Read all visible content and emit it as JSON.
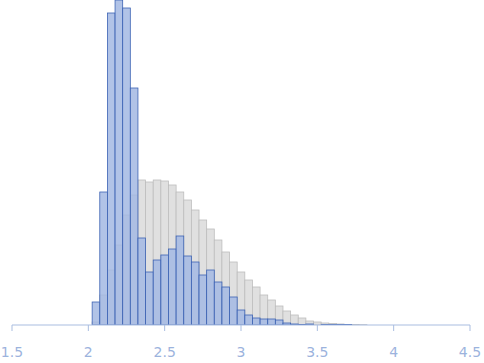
{
  "chart_data": {
    "type": "histogram",
    "bins": [
      2.025,
      2.075,
      2.125,
      2.175,
      2.225,
      2.275,
      2.325,
      2.375,
      2.425,
      2.475,
      2.525,
      2.575,
      2.625,
      2.675,
      2.725,
      2.775,
      2.825,
      2.875,
      2.925,
      2.975,
      3.025,
      3.075,
      3.125,
      3.175,
      3.225,
      3.275,
      3.325,
      3.375,
      3.425,
      3.475,
      3.525,
      3.575,
      3.625,
      3.675,
      3.725,
      3.775,
      3.825,
      3.875,
      3.925
    ],
    "series": [
      {
        "color": "#e0e0e0",
        "values": [
          3,
          30,
          55,
          80,
          110,
          130,
          145,
          143,
          145,
          144,
          140,
          133,
          125,
          115,
          105,
          96,
          85,
          73,
          63,
          53,
          45,
          38,
          30,
          25,
          19,
          14,
          10,
          7,
          4,
          3,
          2,
          1.5,
          1,
          0.5,
          0.5,
          0.3,
          0,
          0
        ]
      },
      {
        "color": "#a3b8e3",
        "values": [
          23,
          133,
          312,
          325,
          317,
          237,
          87,
          53,
          65,
          70,
          76,
          89,
          69,
          63,
          50,
          55,
          43,
          38,
          28,
          15,
          10,
          7,
          6,
          6,
          5,
          2,
          1,
          0.5,
          1,
          0,
          0.5,
          0.5,
          0.5,
          0.5,
          0,
          0,
          0,
          0
        ]
      }
    ],
    "xlim": [
      1.5,
      4.5
    ],
    "xticks": [
      1.5,
      2,
      2.5,
      3,
      3.5,
      4,
      4.5
    ],
    "ylim": [
      0,
      325
    ],
    "tick_labels": "x"
  }
}
